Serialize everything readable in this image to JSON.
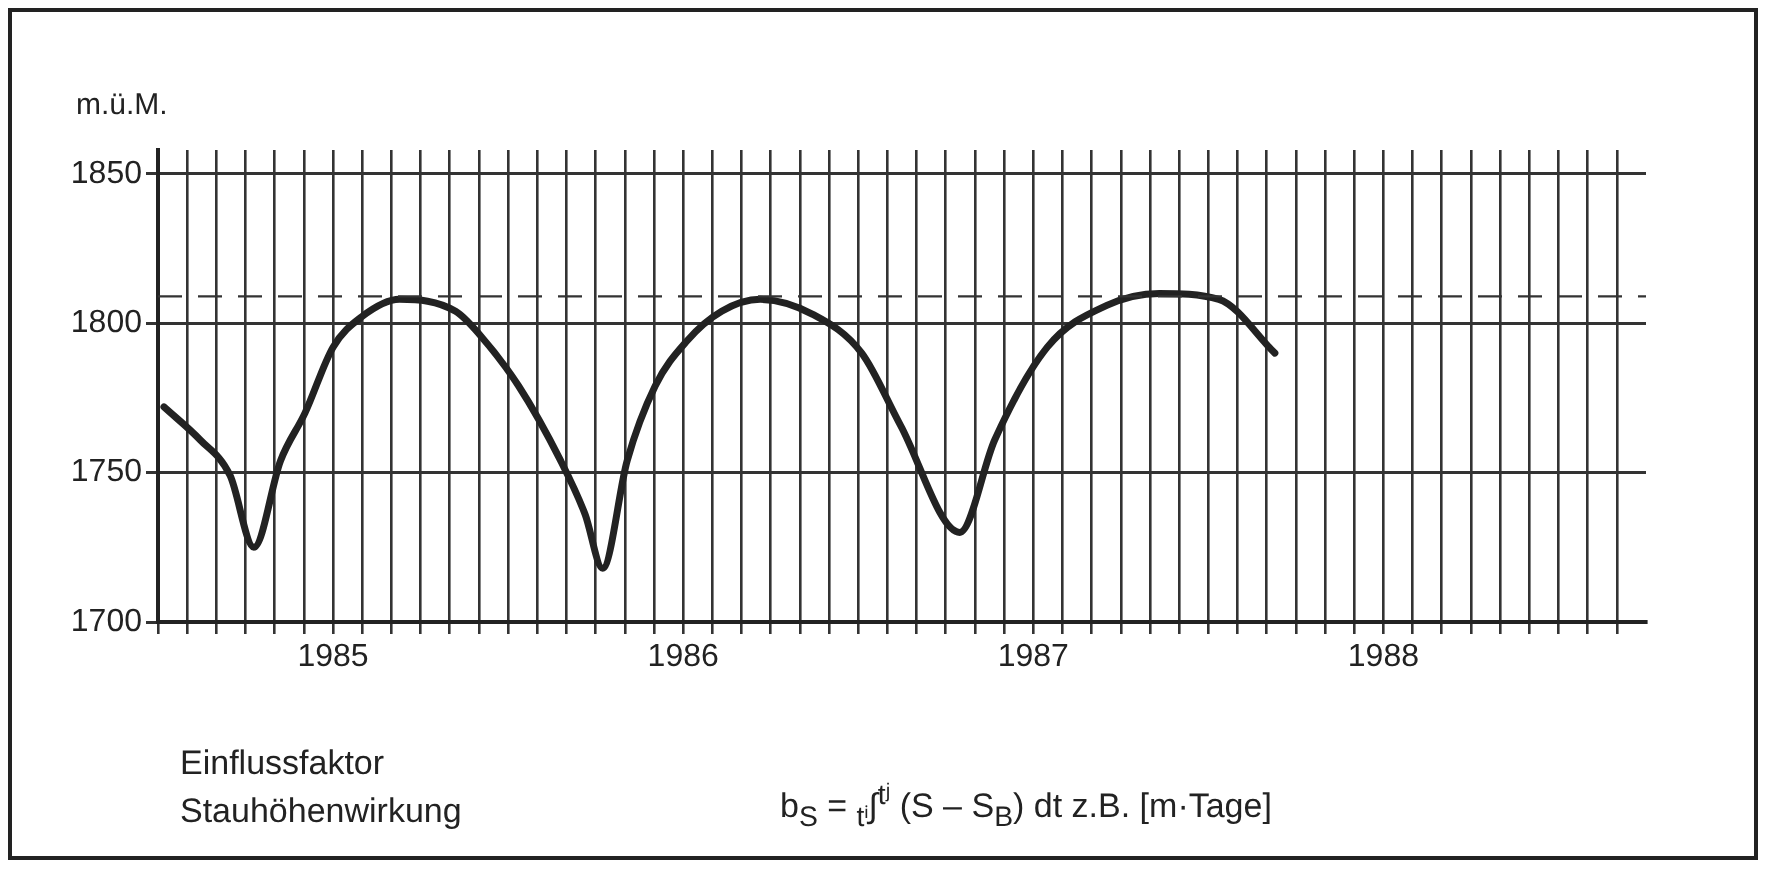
{
  "chart_data": {
    "type": "line",
    "ylabel": "m.ü.M.",
    "annotations": [
      "Einflussfaktor",
      "Stauhöhenwirkung",
      "b$_{S}$ = $_{tⁱ}$∫$^{tʲ}$ (S – S$_{B}$) dt   z.B. [m·Tage]"
    ],
    "series": [
      {
        "color": "#222222",
        "x": [
          1985.017,
          1985.12,
          1985.206,
          1985.274,
          1985.35,
          1985.42,
          1985.5,
          1985.58,
          1985.69,
          1985.85,
          1985.92,
          1986.03,
          1986.15,
          1986.22,
          1986.27,
          1986.34,
          1986.42,
          1986.51,
          1986.61,
          1986.72,
          1986.87,
          1987.01,
          1987.12,
          1987.29,
          1987.39,
          1987.54,
          1987.71,
          1987.86,
          1988.03,
          1988.19
        ],
        "values": [
          1772,
          1761,
          1749,
          1725,
          1754,
          1770,
          1792,
          1802,
          1808,
          1804,
          1796,
          1779,
          1754,
          1736,
          1718,
          1754,
          1779,
          1794,
          1804,
          1808,
          1803,
          1790,
          1766,
          1730,
          1761,
          1792,
          1806,
          1810,
          1808,
          1790
        ]
      }
    ],
    "xlim": [
      1985,
      1989.25
    ],
    "xticks": [
      {
        "value": 1985,
        "label": null
      },
      {
        "value": 1985.0833,
        "label": null
      },
      {
        "value": 1985.1667,
        "label": null
      },
      {
        "value": 1985.25,
        "label": null
      },
      {
        "value": 1985.3333,
        "label": null
      },
      {
        "value": 1985.4167,
        "label": null
      },
      {
        "value": 1985.5,
        "label": "1985"
      },
      {
        "value": 1985.5833,
        "label": null
      },
      {
        "value": 1985.6667,
        "label": null
      },
      {
        "value": 1985.75,
        "label": null
      },
      {
        "value": 1985.8333,
        "label": null
      },
      {
        "value": 1985.9167,
        "label": null
      },
      {
        "value": 1986,
        "label": null
      },
      {
        "value": 1986.0833,
        "label": null
      },
      {
        "value": 1986.1667,
        "label": null
      },
      {
        "value": 1986.25,
        "label": null
      },
      {
        "value": 1986.3333,
        "label": null
      },
      {
        "value": 1986.4167,
        "label": null
      },
      {
        "value": 1986.5,
        "label": "1986"
      },
      {
        "value": 1986.5833,
        "label": null
      },
      {
        "value": 1986.6667,
        "label": null
      },
      {
        "value": 1986.75,
        "label": null
      },
      {
        "value": 1986.8333,
        "label": null
      },
      {
        "value": 1986.9167,
        "label": null
      },
      {
        "value": 1987,
        "label": null
      },
      {
        "value": 1987.0833,
        "label": null
      },
      {
        "value": 1987.1667,
        "label": null
      },
      {
        "value": 1987.25,
        "label": null
      },
      {
        "value": 1987.3333,
        "label": null
      },
      {
        "value": 1987.4167,
        "label": null
      },
      {
        "value": 1987.5,
        "label": "1987"
      },
      {
        "value": 1987.5833,
        "label": null
      },
      {
        "value": 1987.6667,
        "label": null
      },
      {
        "value": 1987.75,
        "label": null
      },
      {
        "value": 1987.8333,
        "label": null
      },
      {
        "value": 1987.9167,
        "label": null
      },
      {
        "value": 1988,
        "label": null
      },
      {
        "value": 1988.0833,
        "label": null
      },
      {
        "value": 1988.1667,
        "label": null
      },
      {
        "value": 1988.25,
        "label": null
      },
      {
        "value": 1988.3333,
        "label": null
      },
      {
        "value": 1988.4167,
        "label": null
      },
      {
        "value": 1988.5,
        "label": "1988"
      },
      {
        "value": 1988.5833,
        "label": null
      },
      {
        "value": 1988.6667,
        "label": null
      },
      {
        "value": 1988.75,
        "label": null
      },
      {
        "value": 1988.8333,
        "label": null
      },
      {
        "value": 1988.9167,
        "label": null
      },
      {
        "value": 1989,
        "label": null
      },
      {
        "value": 1989.0833,
        "label": null
      },
      {
        "value": 1989.1667,
        "label": null
      }
    ],
    "ylim": [
      1700,
      1858
    ],
    "yticks": [
      1700,
      1750,
      1800,
      1850
    ],
    "ref_lines": [
      {
        "axis": "y",
        "value": 1809,
        "line_style": "dashed"
      }
    ],
    "grid": true,
    "legend": false,
    "marker": "none",
    "line_style": "solid"
  }
}
